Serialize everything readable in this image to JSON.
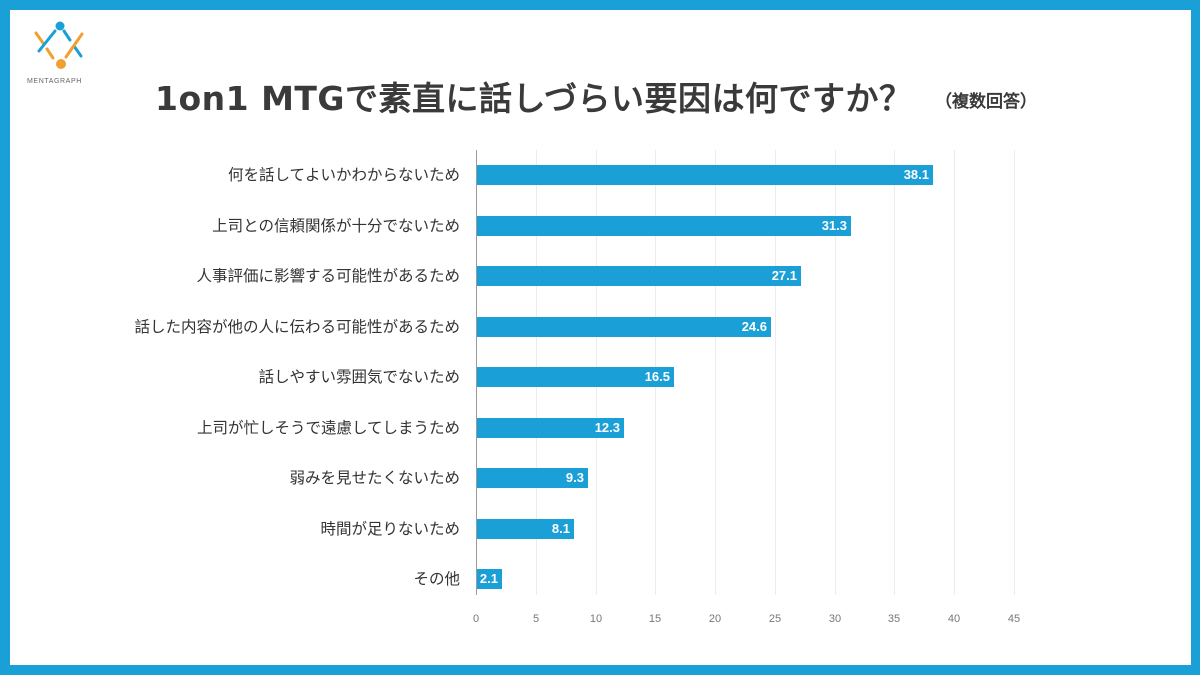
{
  "brand": {
    "name": "MENTAGRAPH",
    "colors": {
      "blue": "#1a9fd6",
      "orange": "#f0a030"
    }
  },
  "frame_color": "#1a9fd6",
  "title": "1on1 MTGで素直に話しづらい要因は何ですか？",
  "title_note": "（複数回答）",
  "chart_data": {
    "type": "bar",
    "orientation": "horizontal",
    "title": "1on1 MTGで素直に話しづらい要因は何ですか？（複数回答）",
    "xlabel": "",
    "ylabel": "",
    "categories": [
      "何を話してよいかわからないため",
      "上司との信頼関係が十分でないため",
      "人事評価に影響する可能性があるため",
      "話した内容が他の人に伝わる可能性があるため",
      "話しやすい雰囲気でないため",
      "上司が忙しそうで遠慮してしまうため",
      "弱みを見せたくないため",
      "時間が足りないため",
      "その他"
    ],
    "values": [
      38.1,
      31.3,
      27.1,
      24.6,
      16.5,
      12.3,
      9.3,
      8.1,
      2.1
    ],
    "xlim": [
      0,
      45
    ],
    "xticks": [
      "0",
      "5",
      "10",
      "15",
      "20",
      "25",
      "30",
      "35",
      "40",
      "45"
    ],
    "grid": true,
    "bar_color": "#1a9fd6",
    "data_labels": true,
    "legend": null
  }
}
